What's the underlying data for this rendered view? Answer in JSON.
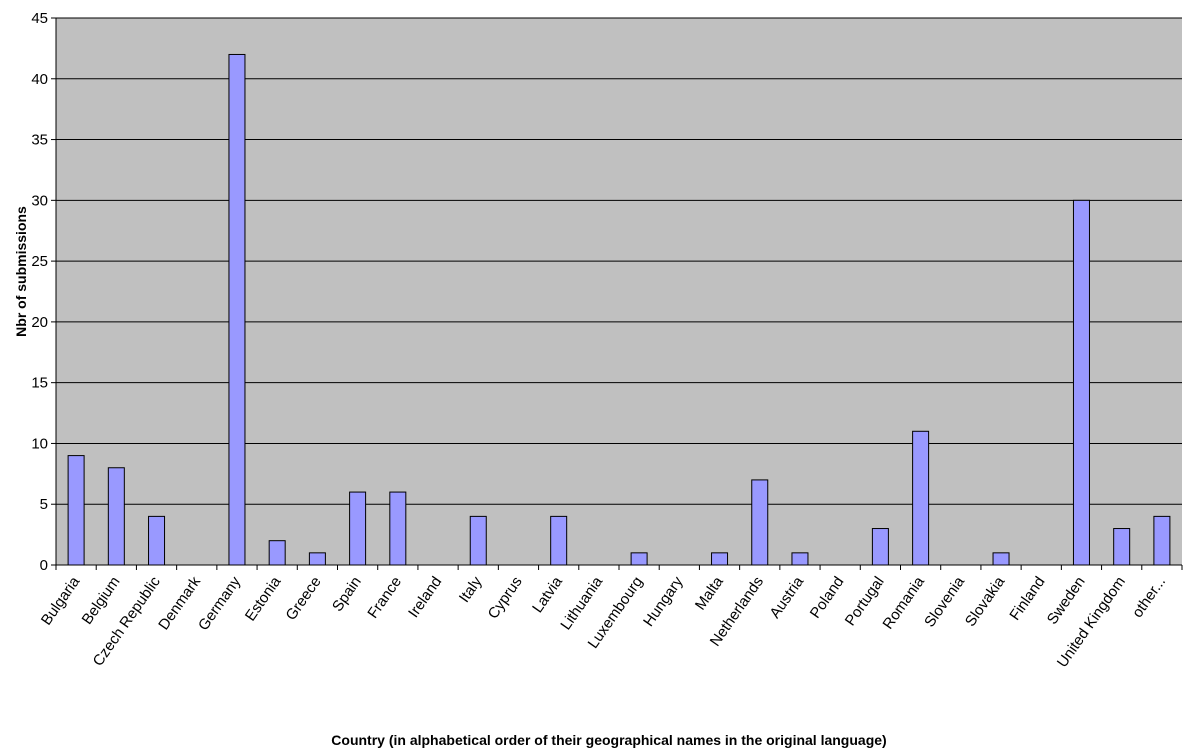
{
  "chart_data": {
    "type": "bar",
    "title": "",
    "xlabel": "Country (in alphabetical order of their geographical names in the original language)",
    "ylabel": "Nbr of submissions",
    "ylim": [
      0,
      45
    ],
    "yticks": [
      0,
      5,
      10,
      15,
      20,
      25,
      30,
      35,
      40,
      45
    ],
    "grid": true,
    "legend": "none",
    "categories": [
      "Bulgaria",
      "Belgium",
      "Czech Republic",
      "Denmark",
      "Germany",
      "Estonia",
      "Greece",
      "Spain",
      "France",
      "Ireland",
      "Italy",
      "Cyprus",
      "Latvia",
      "Lithuania",
      "Luxembourg",
      "Hungary",
      "Malta",
      "Netherlands",
      "Austria",
      "Poland",
      "Portugal",
      "Romania",
      "Slovenia",
      "Slovakia",
      "Finland",
      "Sweden",
      "United Kingdom",
      "other..."
    ],
    "series": [
      {
        "values": [
          9,
          8,
          4,
          0,
          42,
          2,
          1,
          6,
          6,
          0,
          4,
          0,
          4,
          0,
          1,
          0,
          1,
          7,
          1,
          0,
          3,
          11,
          0,
          1,
          0,
          30,
          3,
          4
        ]
      }
    ],
    "colors": {
      "plot_background": "#c0c0c0",
      "bar_fill": "#9999ff",
      "bar_stroke": "#000000",
      "gridline": "#000000"
    }
  }
}
